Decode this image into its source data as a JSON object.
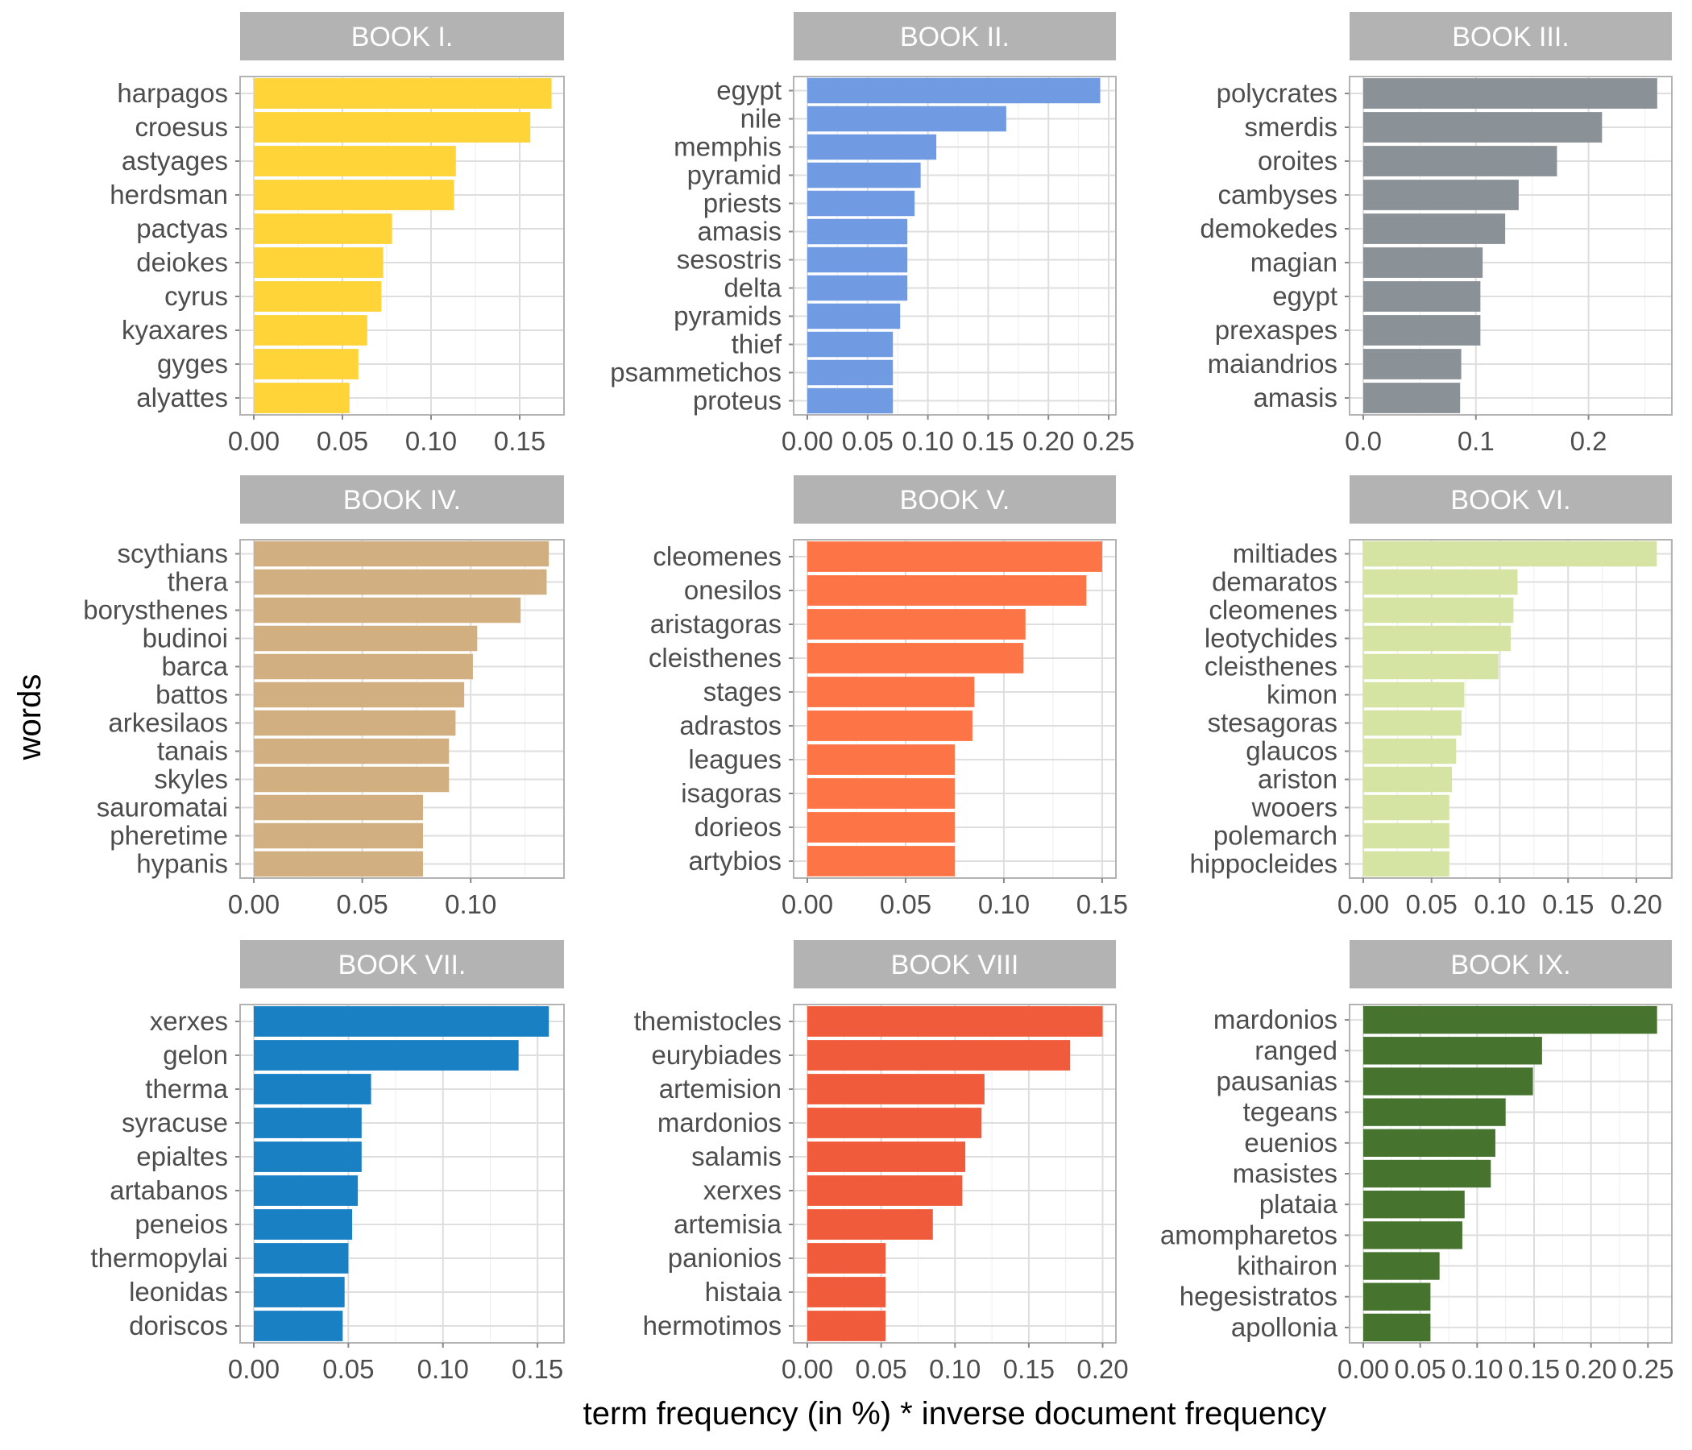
{
  "chart_data": {
    "type": "bar",
    "orientation": "horizontal",
    "layout": "facet-grid-3x3",
    "xlabel": "term frequency (in %) * inverse document frequency",
    "ylabel": "words",
    "grid": true,
    "facets": [
      {
        "title": "BOOK I.",
        "color": "#FED439",
        "xlim": [
          0,
          0.175
        ],
        "ticks": [
          "0.00",
          "0.05",
          "0.10",
          "0.15"
        ],
        "tick_values": [
          0,
          0.05,
          0.1,
          0.15
        ],
        "categories": [
          "harpagos",
          "croesus",
          "astyages",
          "herdsman",
          "pactyas",
          "deiokes",
          "cyrus",
          "kyaxares",
          "gyges",
          "alyattes"
        ],
        "values": [
          0.168,
          0.156,
          0.114,
          0.113,
          0.078,
          0.073,
          0.072,
          0.064,
          0.059,
          0.054
        ]
      },
      {
        "title": "BOOK II.",
        "color": "#709AE1",
        "xlim": [
          0,
          0.256
        ],
        "ticks": [
          "0.00",
          "0.05",
          "0.10",
          "0.15",
          "0.20",
          "0.25"
        ],
        "tick_values": [
          0,
          0.05,
          0.1,
          0.15,
          0.2,
          0.25
        ],
        "categories": [
          "egypt",
          "nile",
          "memphis",
          "pyramid",
          "priests",
          "amasis",
          "sesostris",
          "delta",
          "pyramids",
          "thief",
          "psammetichos",
          "proteus"
        ],
        "values": [
          0.243,
          0.165,
          0.107,
          0.094,
          0.089,
          0.083,
          0.083,
          0.083,
          0.077,
          0.071,
          0.071,
          0.071
        ]
      },
      {
        "title": "BOOK III.",
        "color": "#8A9197",
        "xlim": [
          0,
          0.274
        ],
        "ticks": [
          "0.0",
          "0.1",
          "0.2"
        ],
        "tick_values": [
          0,
          0.1,
          0.2
        ],
        "categories": [
          "polycrates",
          "smerdis",
          "oroites",
          "cambyses",
          "demokedes",
          "magian",
          "egypt",
          "prexaspes",
          "maiandrios",
          "amasis"
        ],
        "values": [
          0.261,
          0.212,
          0.172,
          0.138,
          0.126,
          0.106,
          0.104,
          0.104,
          0.087,
          0.086
        ]
      },
      {
        "title": "BOOK IV.",
        "color": "#D2AF81",
        "xlim": [
          0,
          0.143
        ],
        "ticks": [
          "0.00",
          "0.05",
          "0.10"
        ],
        "tick_values": [
          0,
          0.05,
          0.1
        ],
        "categories": [
          "scythians",
          "thera",
          "borysthenes",
          "budinoi",
          "barca",
          "battos",
          "arkesilaos",
          "tanais",
          "skyles",
          "sauromatai",
          "pheretime",
          "hypanis"
        ],
        "values": [
          0.136,
          0.135,
          0.123,
          0.103,
          0.101,
          0.097,
          0.093,
          0.09,
          0.09,
          0.078,
          0.078,
          0.078
        ]
      },
      {
        "title": "BOOK V.",
        "color": "#FD7446",
        "xlim": [
          0,
          0.157
        ],
        "ticks": [
          "0.00",
          "0.05",
          "0.10",
          "0.15"
        ],
        "tick_values": [
          0,
          0.05,
          0.1,
          0.15
        ],
        "categories": [
          "cleomenes",
          "onesilos",
          "aristagoras",
          "cleisthenes",
          "stages",
          "adrastos",
          "leagues",
          "isagoras",
          "dorieos",
          "artybios"
        ],
        "values": [
          0.15,
          0.142,
          0.111,
          0.11,
          0.085,
          0.084,
          0.075,
          0.075,
          0.075,
          0.075
        ]
      },
      {
        "title": "BOOK VI.",
        "color": "#D5E4A2",
        "xlim": [
          0,
          0.226
        ],
        "ticks": [
          "0.00",
          "0.05",
          "0.10",
          "0.15",
          "0.20"
        ],
        "tick_values": [
          0,
          0.05,
          0.1,
          0.15,
          0.2
        ],
        "categories": [
          "miltiades",
          "demaratos",
          "cleomenes",
          "leotychides",
          "cleisthenes",
          "kimon",
          "stesagoras",
          "glaucos",
          "ariston",
          "wooers",
          "polemarch",
          "hippocleides"
        ],
        "values": [
          0.215,
          0.113,
          0.11,
          0.108,
          0.099,
          0.074,
          0.072,
          0.068,
          0.065,
          0.063,
          0.063,
          0.063
        ]
      },
      {
        "title": "BOOK VII.",
        "color": "#1A80C4",
        "xlim": [
          0,
          0.164
        ],
        "ticks": [
          "0.00",
          "0.05",
          "0.10",
          "0.15"
        ],
        "tick_values": [
          0,
          0.05,
          0.1,
          0.15
        ],
        "categories": [
          "xerxes",
          "gelon",
          "therma",
          "syracuse",
          "epialtes",
          "artabanos",
          "peneios",
          "thermopylai",
          "leonidas",
          "doriscos"
        ],
        "values": [
          0.156,
          0.14,
          0.062,
          0.057,
          0.057,
          0.055,
          0.052,
          0.05,
          0.048,
          0.047
        ]
      },
      {
        "title": "BOOK VIII",
        "color": "#F05C3B",
        "xlim": [
          0,
          0.209
        ],
        "ticks": [
          "0.00",
          "0.05",
          "0.10",
          "0.15",
          "0.20"
        ],
        "tick_values": [
          0,
          0.05,
          0.1,
          0.15,
          0.2
        ],
        "categories": [
          "themistocles",
          "eurybiades",
          "artemision",
          "mardonios",
          "salamis",
          "xerxes",
          "artemisia",
          "panionios",
          "histaia",
          "hermotimos"
        ],
        "values": [
          0.2,
          0.178,
          0.12,
          0.118,
          0.107,
          0.105,
          0.085,
          0.053,
          0.053,
          0.053
        ]
      },
      {
        "title": "BOOK IX.",
        "color": "#46732E",
        "xlim": [
          0,
          0.271
        ],
        "ticks": [
          "0.00",
          "0.05",
          "0.10",
          "0.15",
          "0.20",
          "0.25"
        ],
        "tick_values": [
          0,
          0.05,
          0.1,
          0.15,
          0.2,
          0.25
        ],
        "categories": [
          "mardonios",
          "ranged",
          "pausanias",
          "tegeans",
          "euenios",
          "masistes",
          "plataia",
          "amompharetos",
          "kithairon",
          "hegesistratos",
          "apollonia"
        ],
        "values": [
          0.258,
          0.157,
          0.149,
          0.125,
          0.116,
          0.112,
          0.089,
          0.087,
          0.067,
          0.059,
          0.059
        ]
      }
    ]
  }
}
